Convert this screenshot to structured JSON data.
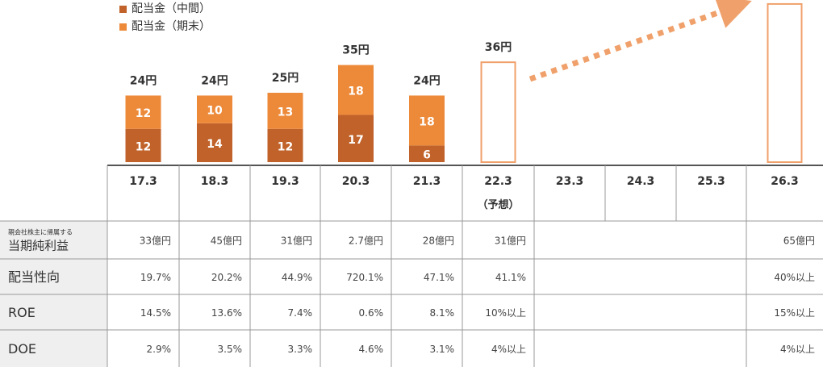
{
  "legend": {
    "interim": "配当金（中間）",
    "final": "配当金（期末）"
  },
  "colors": {
    "interim": "#c0622a",
    "final": "#ed8a3a",
    "forecast_border": "#f0a16b",
    "arrow": "#f0a16b"
  },
  "chart_data": {
    "type": "bar",
    "categories": [
      "17.3",
      "18.3",
      "19.3",
      "20.3",
      "21.3",
      "22.3",
      "23.3",
      "24.3",
      "25.3",
      "26.3"
    ],
    "forecast_note": "（予想）",
    "series": [
      {
        "name": "配当金（中間）",
        "values": [
          12,
          14,
          12,
          17,
          6,
          null,
          null,
          null,
          null,
          null
        ]
      },
      {
        "name": "配当金（期末）",
        "values": [
          12,
          10,
          13,
          18,
          18,
          null,
          null,
          null,
          null,
          null
        ]
      }
    ],
    "totals": [
      "24円",
      "24円",
      "25円",
      "35円",
      "24円",
      "36円",
      null,
      null,
      null,
      null
    ],
    "forecast_bars": [
      {
        "category": "22.3",
        "value": 36
      },
      {
        "category": "26.3",
        "value": 57
      }
    ]
  },
  "table": {
    "rows": [
      {
        "label_small": "親会社株主に帰属する",
        "label": "当期純利益",
        "values": [
          "33億円",
          "45億円",
          "31億円",
          "2.7億円",
          "28億円",
          "31億円",
          "",
          "",
          "",
          "65億円"
        ]
      },
      {
        "label_small": "",
        "label": "配当性向",
        "values": [
          "19.7%",
          "20.2%",
          "44.9%",
          "720.1%",
          "47.1%",
          "41.1%",
          "",
          "",
          "",
          "40%以上"
        ]
      },
      {
        "label_small": "",
        "label": "ROE",
        "values": [
          "14.5%",
          "13.6%",
          "7.4%",
          "0.6%",
          "8.1%",
          "10%以上",
          "",
          "",
          "",
          "15%以上"
        ]
      },
      {
        "label_small": "",
        "label": "DOE",
        "values": [
          "2.9%",
          "3.5%",
          "3.3%",
          "4.6%",
          "3.1%",
          "4%以上",
          "",
          "",
          "",
          "4%以上"
        ]
      }
    ]
  }
}
